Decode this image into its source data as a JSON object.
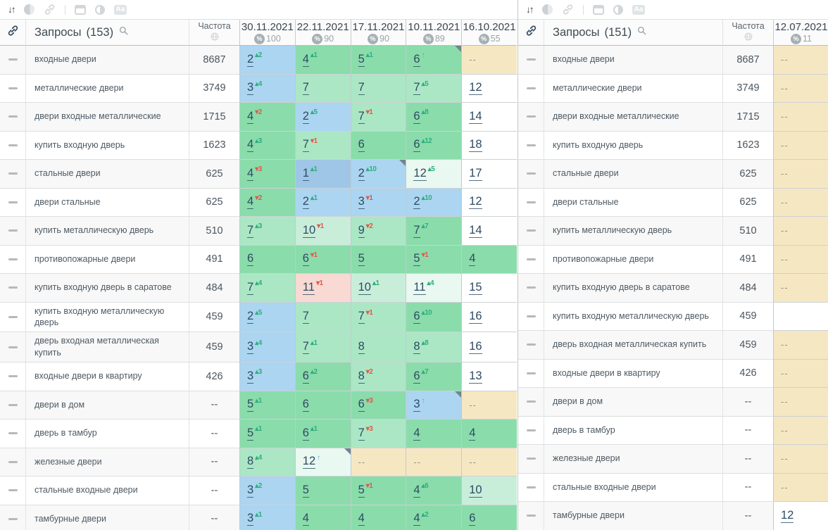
{
  "percent_symbol": "%",
  "toolbar": {
    "sort_glyph": "↓↑",
    "font_case_label": "Aa"
  },
  "icons": {
    "sort": "down-up-arrows",
    "fade": "fade-circle",
    "link": "chain-link",
    "window": "window-frame",
    "contrast": "half-circle",
    "font_case": "Aa",
    "search": "magnifier",
    "globe": "globe",
    "percent": "percent-badge",
    "row_handle": "dash",
    "note": "corner-triangle"
  },
  "colors": {
    "top1": "#9fc6e6",
    "top3": "#abd5f1",
    "green": "#8adcab",
    "green2": "#abe7c5",
    "green3": "#c8eeda",
    "green4": "#e9f8f0",
    "pink": "#f8d9d3",
    "tan": "#f6e7c3",
    "change_up": "#2fae7d",
    "change_down": "#e2574b",
    "change_new": "#55a7cf"
  },
  "panels": {
    "left": {
      "queries_label": "Запросы",
      "queries_count": "(153)",
      "frequency_label": "Частота",
      "dates": [
        {
          "label": "30.11.2021",
          "percent": "100"
        },
        {
          "label": "22.11.2021",
          "percent": "90"
        },
        {
          "label": "17.11.2021",
          "percent": "90"
        },
        {
          "label": "10.11.2021",
          "percent": "89"
        },
        {
          "label": "16.10.2021",
          "percent": "55"
        }
      ],
      "rows": [
        {
          "query": "входные двери",
          "frequency": "8687",
          "positions": [
            {
              "value": "2",
              "direction": "up",
              "change": "2",
              "color": "top3"
            },
            {
              "value": "4",
              "direction": "up",
              "change": "1",
              "color": "green"
            },
            {
              "value": "5",
              "direction": "up",
              "change": "1",
              "color": "green"
            },
            {
              "value": "6",
              "direction": "new",
              "change": "",
              "color": "green",
              "note": true
            },
            {
              "value": "--",
              "color": "tan"
            }
          ]
        },
        {
          "query": "металлические двери",
          "frequency": "3749",
          "positions": [
            {
              "value": "3",
              "direction": "up",
              "change": "4",
              "color": "top3"
            },
            {
              "value": "7",
              "color": "green2"
            },
            {
              "value": "7",
              "color": "green2"
            },
            {
              "value": "7",
              "direction": "up",
              "change": "5",
              "color": "green2"
            },
            {
              "value": "12",
              "color": "white"
            }
          ]
        },
        {
          "query": "двери входные металлические",
          "frequency": "1715",
          "positions": [
            {
              "value": "4",
              "direction": "down",
              "change": "2",
              "color": "green"
            },
            {
              "value": "2",
              "direction": "up",
              "change": "5",
              "color": "top3"
            },
            {
              "value": "7",
              "direction": "down",
              "change": "1",
              "color": "green2"
            },
            {
              "value": "6",
              "direction": "up",
              "change": "8",
              "color": "green"
            },
            {
              "value": "14",
              "color": "white"
            }
          ]
        },
        {
          "query": "купить входную дверь",
          "frequency": "1623",
          "positions": [
            {
              "value": "4",
              "direction": "up",
              "change": "3",
              "color": "green"
            },
            {
              "value": "7",
              "direction": "down",
              "change": "1",
              "color": "green2"
            },
            {
              "value": "6",
              "color": "green"
            },
            {
              "value": "6",
              "direction": "up",
              "change": "12",
              "color": "green"
            },
            {
              "value": "18",
              "color": "white"
            }
          ]
        },
        {
          "query": "стальные двери",
          "frequency": "625",
          "positions": [
            {
              "value": "4",
              "direction": "down",
              "change": "3",
              "color": "green"
            },
            {
              "value": "1",
              "direction": "up",
              "change": "1",
              "color": "top1"
            },
            {
              "value": "2",
              "direction": "up",
              "change": "10",
              "color": "top3",
              "note": true
            },
            {
              "value": "12",
              "direction": "up",
              "change": "5",
              "color": "green4"
            },
            {
              "value": "17",
              "color": "white"
            }
          ]
        },
        {
          "query": "двери стальные",
          "frequency": "625",
          "positions": [
            {
              "value": "4",
              "direction": "down",
              "change": "2",
              "color": "green"
            },
            {
              "value": "2",
              "direction": "up",
              "change": "1",
              "color": "top3"
            },
            {
              "value": "3",
              "direction": "down",
              "change": "1",
              "color": "top3"
            },
            {
              "value": "2",
              "direction": "up",
              "change": "10",
              "color": "top3"
            },
            {
              "value": "12",
              "color": "white"
            }
          ]
        },
        {
          "query": "купить металлическую дверь",
          "frequency": "510",
          "positions": [
            {
              "value": "7",
              "direction": "up",
              "change": "3",
              "color": "green2"
            },
            {
              "value": "10",
              "direction": "down",
              "change": "1",
              "color": "green3"
            },
            {
              "value": "9",
              "direction": "down",
              "change": "2",
              "color": "green2"
            },
            {
              "value": "7",
              "direction": "up",
              "change": "7",
              "color": "green"
            },
            {
              "value": "14",
              "color": "white"
            }
          ]
        },
        {
          "query": "противопожарные двери",
          "frequency": "491",
          "positions": [
            {
              "value": "6",
              "color": "green"
            },
            {
              "value": "6",
              "direction": "down",
              "change": "1",
              "color": "green"
            },
            {
              "value": "5",
              "color": "green"
            },
            {
              "value": "5",
              "direction": "down",
              "change": "1",
              "color": "green"
            },
            {
              "value": "4",
              "color": "green"
            }
          ]
        },
        {
          "query": "купить входную дверь в саратове",
          "frequency": "484",
          "positions": [
            {
              "value": "7",
              "direction": "up",
              "change": "4",
              "color": "green2"
            },
            {
              "value": "11",
              "direction": "down",
              "change": "1",
              "color": "pink"
            },
            {
              "value": "10",
              "direction": "up",
              "change": "1",
              "color": "green3"
            },
            {
              "value": "11",
              "direction": "up",
              "change": "4",
              "color": "green4"
            },
            {
              "value": "15",
              "color": "white"
            }
          ]
        },
        {
          "query": "купить входную металлическую дверь",
          "frequency": "459",
          "positions": [
            {
              "value": "2",
              "direction": "up",
              "change": "5",
              "color": "top3"
            },
            {
              "value": "7",
              "color": "green2"
            },
            {
              "value": "7",
              "direction": "down",
              "change": "1",
              "color": "green2"
            },
            {
              "value": "6",
              "direction": "up",
              "change": "10",
              "color": "green"
            },
            {
              "value": "16",
              "color": "white"
            }
          ]
        },
        {
          "query": "дверь входная металлическая купить",
          "frequency": "459",
          "positions": [
            {
              "value": "3",
              "direction": "up",
              "change": "4",
              "color": "top3"
            },
            {
              "value": "7",
              "direction": "up",
              "change": "1",
              "color": "green2"
            },
            {
              "value": "8",
              "color": "green2"
            },
            {
              "value": "8",
              "direction": "up",
              "change": "8",
              "color": "green2"
            },
            {
              "value": "16",
              "color": "white"
            }
          ]
        },
        {
          "query": "входные двери в квартиру",
          "frequency": "426",
          "positions": [
            {
              "value": "3",
              "direction": "up",
              "change": "3",
              "color": "top3"
            },
            {
              "value": "6",
              "direction": "up",
              "change": "2",
              "color": "green"
            },
            {
              "value": "8",
              "direction": "down",
              "change": "2",
              "color": "green2"
            },
            {
              "value": "6",
              "direction": "up",
              "change": "7",
              "color": "green"
            },
            {
              "value": "13",
              "color": "white"
            }
          ]
        },
        {
          "query": "двери в дом",
          "frequency": "--",
          "positions": [
            {
              "value": "5",
              "direction": "up",
              "change": "1",
              "color": "green"
            },
            {
              "value": "6",
              "color": "green"
            },
            {
              "value": "6",
              "direction": "down",
              "change": "3",
              "color": "green"
            },
            {
              "value": "3",
              "direction": "new",
              "change": "",
              "color": "top3",
              "note": true
            },
            {
              "value": "--",
              "color": "tan"
            }
          ]
        },
        {
          "query": "дверь в тамбур",
          "frequency": "--",
          "positions": [
            {
              "value": "5",
              "direction": "up",
              "change": "1",
              "color": "green"
            },
            {
              "value": "6",
              "direction": "up",
              "change": "1",
              "color": "green"
            },
            {
              "value": "7",
              "direction": "down",
              "change": "3",
              "color": "green2"
            },
            {
              "value": "4",
              "color": "green"
            },
            {
              "value": "4",
              "color": "green"
            }
          ]
        },
        {
          "query": "железные двери",
          "frequency": "--",
          "positions": [
            {
              "value": "8",
              "direction": "up",
              "change": "4",
              "color": "green2"
            },
            {
              "value": "12",
              "direction": "new",
              "change": "",
              "color": "green4",
              "note": true
            },
            {
              "value": "--",
              "color": "tan"
            },
            {
              "value": "--",
              "color": "tan"
            },
            {
              "value": "--",
              "color": "tan"
            }
          ]
        },
        {
          "query": "стальные входные двери",
          "frequency": "--",
          "positions": [
            {
              "value": "3",
              "direction": "up",
              "change": "2",
              "color": "top3"
            },
            {
              "value": "5",
              "color": "green"
            },
            {
              "value": "5",
              "direction": "down",
              "change": "1",
              "color": "green"
            },
            {
              "value": "4",
              "direction": "up",
              "change": "6",
              "color": "green"
            },
            {
              "value": "10",
              "color": "green3"
            }
          ]
        },
        {
          "query": "тамбурные двери",
          "frequency": "--",
          "positions": [
            {
              "value": "3",
              "direction": "up",
              "change": "1",
              "color": "top3"
            },
            {
              "value": "4",
              "color": "green"
            },
            {
              "value": "4",
              "color": "green"
            },
            {
              "value": "4",
              "direction": "up",
              "change": "2",
              "color": "green"
            },
            {
              "value": "6",
              "color": "green"
            }
          ]
        }
      ]
    },
    "right": {
      "queries_label": "Запросы",
      "queries_count": "(151)",
      "frequency_label": "Частота",
      "dates": [
        {
          "label": "12.07.2021",
          "percent": "11"
        }
      ],
      "rows": [
        {
          "query": "входные двери",
          "frequency": "8687",
          "positions": [
            {
              "value": "--",
              "color": "tan"
            }
          ]
        },
        {
          "query": "металлические двери",
          "frequency": "3749",
          "positions": [
            {
              "value": "--",
              "color": "tan"
            }
          ]
        },
        {
          "query": "двери входные металлические",
          "frequency": "1715",
          "positions": [
            {
              "value": "--",
              "color": "tan"
            }
          ]
        },
        {
          "query": "купить входную дверь",
          "frequency": "1623",
          "positions": [
            {
              "value": "--",
              "color": "tan"
            }
          ]
        },
        {
          "query": "стальные двери",
          "frequency": "625",
          "positions": [
            {
              "value": "--",
              "color": "tan"
            }
          ]
        },
        {
          "query": "двери стальные",
          "frequency": "625",
          "positions": [
            {
              "value": "--",
              "color": "tan"
            }
          ]
        },
        {
          "query": "купить металлическую дверь",
          "frequency": "510",
          "positions": [
            {
              "value": "--",
              "color": "tan"
            }
          ]
        },
        {
          "query": "противопожарные двери",
          "frequency": "491",
          "positions": [
            {
              "value": "--",
              "color": "tan"
            }
          ]
        },
        {
          "query": "купить входную дверь в саратове",
          "frequency": "484",
          "positions": [
            {
              "value": "--",
              "color": "tan"
            }
          ]
        },
        {
          "query": "купить входную металлическую дверь",
          "frequency": "459",
          "positions": [
            {
              "value": "",
              "color": "white"
            }
          ]
        },
        {
          "query": "дверь входная металлическая купить",
          "frequency": "459",
          "positions": [
            {
              "value": "--",
              "color": "tan"
            }
          ]
        },
        {
          "query": "входные двери в квартиру",
          "frequency": "426",
          "positions": [
            {
              "value": "--",
              "color": "tan"
            }
          ]
        },
        {
          "query": "двери в дом",
          "frequency": "--",
          "positions": [
            {
              "value": "--",
              "color": "tan"
            }
          ]
        },
        {
          "query": "дверь в тамбур",
          "frequency": "--",
          "positions": [
            {
              "value": "--",
              "color": "tan"
            }
          ]
        },
        {
          "query": "железные двери",
          "frequency": "--",
          "positions": [
            {
              "value": "--",
              "color": "tan"
            }
          ]
        },
        {
          "query": "стальные входные двери",
          "frequency": "--",
          "positions": [
            {
              "value": "--",
              "color": "tan"
            }
          ]
        },
        {
          "query": "тамбурные двери",
          "frequency": "--",
          "positions": [
            {
              "value": "12",
              "color": "white"
            }
          ]
        }
      ]
    }
  }
}
